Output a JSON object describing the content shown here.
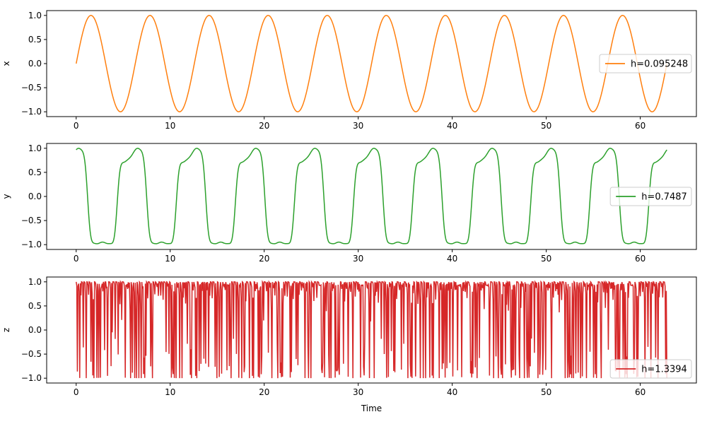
{
  "chart_data": [
    {
      "type": "line",
      "ylabel": "x",
      "xlabel": "",
      "xlim": [
        -3.14,
        65.97
      ],
      "ylim": [
        -1.1,
        1.1
      ],
      "xticks": [
        0,
        10,
        20,
        30,
        40,
        50,
        60
      ],
      "yticks": [
        -1.0,
        -0.5,
        0.0,
        0.5,
        1.0
      ],
      "legend_position": "center-right",
      "series": [
        {
          "name": "h=0.095248",
          "color": "#ff7f0e",
          "generator": "sin",
          "t_range": [
            0,
            62.83
          ],
          "description": "sin(t) sampled at 1000 points over [0, 20*pi]"
        }
      ]
    },
    {
      "type": "line",
      "ylabel": "y",
      "xlabel": "",
      "xlim": [
        -3.14,
        65.97
      ],
      "ylim": [
        -1.1,
        1.1
      ],
      "xticks": [
        0,
        10,
        20,
        30,
        40,
        50,
        60
      ],
      "yticks": [
        -1.0,
        -0.5,
        0.0,
        0.5,
        1.0
      ],
      "legend_position": "center-right",
      "series": [
        {
          "name": "h=0.7487",
          "color": "#2ca02c",
          "generator": "sin_of_sin",
          "t_range": [
            0,
            62.83
          ],
          "description": "sin(pi/2*cos(t)+ ... ) style smooth oscillation with double bumps, period ~6.28"
        }
      ]
    },
    {
      "type": "line",
      "ylabel": "z",
      "xlabel": "Time",
      "xlim": [
        -3.14,
        65.97
      ],
      "ylim": [
        -1.1,
        1.1
      ],
      "xticks": [
        0,
        10,
        20,
        30,
        40,
        50,
        60
      ],
      "yticks": [
        -1.0,
        -0.5,
        0.0,
        0.5,
        1.0
      ],
      "legend_position": "lower-right",
      "series": [
        {
          "name": "h=1.3394",
          "color": "#d62728",
          "generator": "chaotic",
          "t_range": [
            0,
            62.83
          ],
          "description": "highly irregular values in [-1, 1], mostly near 0.5-1.0 with frequent drops"
        }
      ]
    }
  ]
}
